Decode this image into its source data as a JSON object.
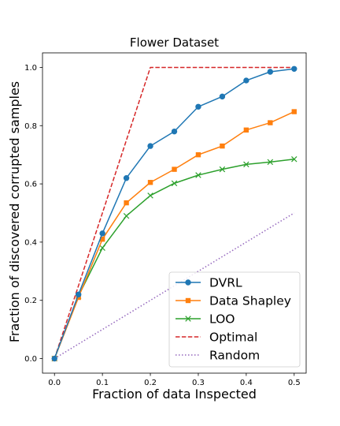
{
  "chart_data": {
    "type": "line",
    "title": "Flower Dataset",
    "xlabel": "Fraction of data Inspected",
    "ylabel": "Fraction of discovered corrupted samples",
    "xlim": [
      -0.025,
      0.525
    ],
    "ylim": [
      -0.05,
      1.05
    ],
    "x_ticks": [
      0.0,
      0.1,
      0.2,
      0.3,
      0.4,
      0.5
    ],
    "x_tick_labels": [
      "0.0",
      "0.1",
      "0.2",
      "0.3",
      "0.4",
      "0.5"
    ],
    "y_ticks": [
      0.0,
      0.2,
      0.4,
      0.6,
      0.8,
      1.0
    ],
    "y_tick_labels": [
      "0.0",
      "0.2",
      "0.4",
      "0.6",
      "0.8",
      "1.0"
    ],
    "grid": false,
    "legend_position": "bottom-right",
    "series": [
      {
        "name": "DVRL",
        "color": "#1f77b4",
        "style": "solid",
        "marker": "circle",
        "points": [
          [
            0.0,
            0.0
          ],
          [
            0.05,
            0.22
          ],
          [
            0.1,
            0.43
          ],
          [
            0.15,
            0.62
          ],
          [
            0.2,
            0.73
          ],
          [
            0.25,
            0.78
          ],
          [
            0.3,
            0.865
          ],
          [
            0.35,
            0.9
          ],
          [
            0.4,
            0.955
          ],
          [
            0.45,
            0.985
          ],
          [
            0.5,
            0.995
          ]
        ]
      },
      {
        "name": "Data Shapley",
        "color": "#ff7f0e",
        "style": "solid",
        "marker": "square",
        "points": [
          [
            0.0,
            0.0
          ],
          [
            0.05,
            0.21
          ],
          [
            0.1,
            0.41
          ],
          [
            0.15,
            0.535
          ],
          [
            0.2,
            0.605
          ],
          [
            0.25,
            0.65
          ],
          [
            0.3,
            0.7
          ],
          [
            0.35,
            0.73
          ],
          [
            0.4,
            0.785
          ],
          [
            0.45,
            0.81
          ],
          [
            0.5,
            0.848
          ]
        ]
      },
      {
        "name": "LOO",
        "color": "#2ca02c",
        "style": "solid",
        "marker": "x",
        "points": [
          [
            0.0,
            0.0
          ],
          [
            0.05,
            0.215
          ],
          [
            0.1,
            0.38
          ],
          [
            0.15,
            0.49
          ],
          [
            0.2,
            0.56
          ],
          [
            0.25,
            0.602
          ],
          [
            0.3,
            0.63
          ],
          [
            0.35,
            0.65
          ],
          [
            0.4,
            0.667
          ],
          [
            0.45,
            0.675
          ],
          [
            0.5,
            0.685
          ]
        ]
      },
      {
        "name": "Optimal",
        "color": "#d62728",
        "style": "dashed",
        "marker": "none",
        "points": [
          [
            0.0,
            0.0
          ],
          [
            0.2,
            1.0
          ],
          [
            0.5,
            1.0
          ]
        ]
      },
      {
        "name": "Random",
        "color": "#9467bd",
        "style": "dotted",
        "marker": "none",
        "points": [
          [
            0.0,
            0.0
          ],
          [
            0.5,
            0.5
          ]
        ]
      }
    ]
  }
}
